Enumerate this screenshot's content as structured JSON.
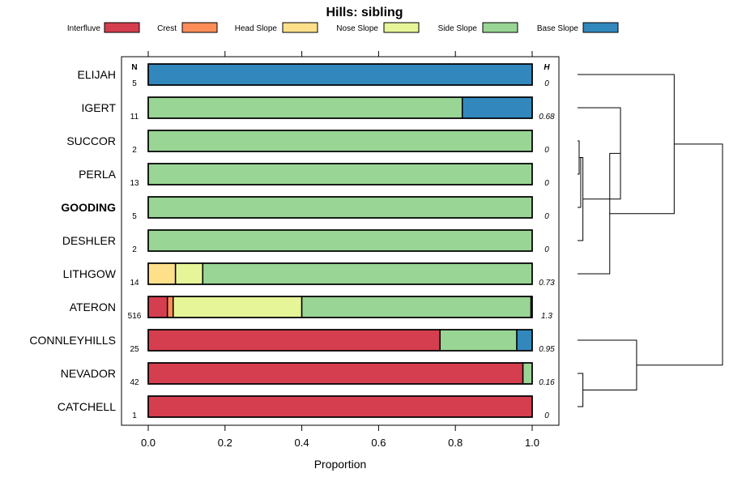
{
  "chart_data": {
    "type": "bar",
    "orientation": "horizontal-stacked",
    "title": "Hills: sibling",
    "xlabel": "Proportion",
    "ylabel": "",
    "xlim": [
      0,
      1
    ],
    "xticks": [
      "0.0",
      "0.2",
      "0.4",
      "0.6",
      "0.8",
      "1.0"
    ],
    "n_header": "N",
    "h_header": "H",
    "legend_position": "top",
    "series": [
      {
        "name": "Interfluve",
        "color": "#d53e4f"
      },
      {
        "name": "Crest",
        "color": "#fc8d59"
      },
      {
        "name": "Head Slope",
        "color": "#fee08b"
      },
      {
        "name": "Nose Slope",
        "color": "#e6f598"
      },
      {
        "name": "Side Slope",
        "color": "#99d594"
      },
      {
        "name": "Base Slope",
        "color": "#3288bd"
      }
    ],
    "categories": [
      {
        "name": "ELIJAH",
        "n": "5",
        "h": "0",
        "bold": false,
        "values": [
          0,
          0,
          0,
          0,
          0,
          1.0
        ]
      },
      {
        "name": "IGERT",
        "n": "11",
        "h": "0.68",
        "bold": false,
        "values": [
          0,
          0,
          0,
          0,
          0.818,
          0.182
        ]
      },
      {
        "name": "SUCCOR",
        "n": "2",
        "h": "0",
        "bold": false,
        "values": [
          0,
          0,
          0,
          0,
          1.0,
          0
        ]
      },
      {
        "name": "PERLA",
        "n": "13",
        "h": "0",
        "bold": false,
        "values": [
          0,
          0,
          0,
          0,
          1.0,
          0
        ]
      },
      {
        "name": "GOODING",
        "n": "5",
        "h": "0",
        "bold": true,
        "values": [
          0,
          0,
          0,
          0,
          1.0,
          0
        ]
      },
      {
        "name": "DESHLER",
        "n": "2",
        "h": "0",
        "bold": false,
        "values": [
          0,
          0,
          0,
          0,
          1.0,
          0
        ]
      },
      {
        "name": "LITHGOW",
        "n": "14",
        "h": "0.73",
        "bold": false,
        "values": [
          0,
          0,
          0.071,
          0.071,
          0.858,
          0
        ]
      },
      {
        "name": "ATERON",
        "n": "516",
        "h": "1.3",
        "bold": false,
        "values": [
          0.05,
          0.015,
          0,
          0.335,
          0.597,
          0.003
        ]
      },
      {
        "name": "CONNLEYHILLS",
        "n": "25",
        "h": "0.95",
        "bold": false,
        "values": [
          0.76,
          0,
          0,
          0,
          0.2,
          0.04
        ]
      },
      {
        "name": "NEVADOR",
        "n": "42",
        "h": "0.16",
        "bold": false,
        "values": [
          0.976,
          0,
          0,
          0,
          0.024,
          0
        ]
      },
      {
        "name": "CATCHELL",
        "n": "1",
        "h": "0",
        "bold": false,
        "values": [
          1.0,
          0,
          0,
          0,
          0,
          0
        ]
      }
    ],
    "dendrogram": {
      "merges": [
        [
          "SUCCOR",
          "PERLA"
        ],
        [
          "PERLA",
          "GOODING"
        ],
        [
          "SUCCOR",
          "DESHLER"
        ],
        [
          "IGERT",
          "SUCCOR"
        ],
        [
          "IGERT",
          "LITHGOW"
        ],
        [
          "ELIJAH",
          "IGERT"
        ],
        [
          "NEVADOR",
          "CATCHELL"
        ],
        [
          "CONNLEYHILLS",
          "NEVADOR"
        ],
        [
          "ELIJAH",
          "CONNLEYHILLS"
        ]
      ],
      "heights": [
        0.003,
        0.006,
        0.01,
        0.08,
        0.06,
        0.18,
        0.01,
        0.11,
        0.27
      ]
    }
  }
}
